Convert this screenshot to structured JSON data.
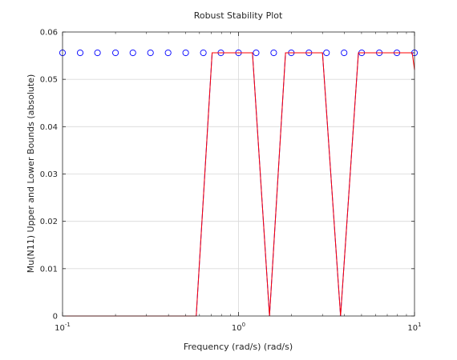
{
  "chart_data": {
    "type": "line",
    "title": "Robust Stability Plot",
    "xlabel": "Frequency (rad/s) (rad/s)",
    "ylabel": "Mu(N11) Upper and Lower Bounds (absolute)",
    "xscale": "log",
    "xlim": [
      0.1,
      10
    ],
    "ylim": [
      0,
      0.06
    ],
    "xticks": [
      {
        "value": 0.1,
        "base": "10",
        "exp": "-1"
      },
      {
        "value": 1,
        "base": "10",
        "exp": "0"
      },
      {
        "value": 10,
        "base": "10",
        "exp": "1"
      }
    ],
    "yticks": [
      {
        "value": 0,
        "label": "0"
      },
      {
        "value": 0.01,
        "label": "0.01"
      },
      {
        "value": 0.02,
        "label": "0.02"
      },
      {
        "value": 0.03,
        "label": "0.03"
      },
      {
        "value": 0.04,
        "label": "0.04"
      },
      {
        "value": 0.05,
        "label": "0.05"
      },
      {
        "value": 0.06,
        "label": "0.06"
      }
    ],
    "grid": true,
    "series": [
      {
        "style": "markers",
        "marker": "circle",
        "color": "#0000ff",
        "x": [
          0.1,
          0.126,
          0.158,
          0.2,
          0.251,
          0.316,
          0.398,
          0.501,
          0.631,
          0.794,
          1.0,
          1.259,
          1.585,
          1.995,
          2.512,
          3.162,
          3.981,
          5.012,
          6.31,
          7.943,
          10.0
        ],
        "y": [
          0.0556,
          0.0556,
          0.0556,
          0.0556,
          0.0556,
          0.0556,
          0.0556,
          0.0556,
          0.0556,
          0.0556,
          0.0556,
          0.0556,
          0.0556,
          0.0556,
          0.0556,
          0.0556,
          0.0556,
          0.0556,
          0.0556,
          0.0556,
          0.0556
        ]
      },
      {
        "style": "line",
        "color": "#0000ff",
        "x": [
          0.1,
          0.575,
          0.708,
          1.2,
          1.5,
          1.85,
          3.0,
          3.8,
          4.8,
          10.0
        ],
        "y": [
          0.0,
          0.0,
          0.0556,
          0.0556,
          0.0,
          0.0556,
          0.0556,
          0.0,
          0.0556,
          0.0556
        ]
      },
      {
        "style": "line",
        "color": "#ff0000",
        "x": [
          0.1,
          0.575,
          0.708,
          1.2,
          1.5,
          1.85,
          3.0,
          3.8,
          4.8,
          9.7,
          10.0
        ],
        "y": [
          0.0,
          0.0,
          0.0556,
          0.0556,
          0.0,
          0.0556,
          0.0556,
          0.0,
          0.0556,
          0.0556,
          0.052
        ]
      }
    ]
  }
}
